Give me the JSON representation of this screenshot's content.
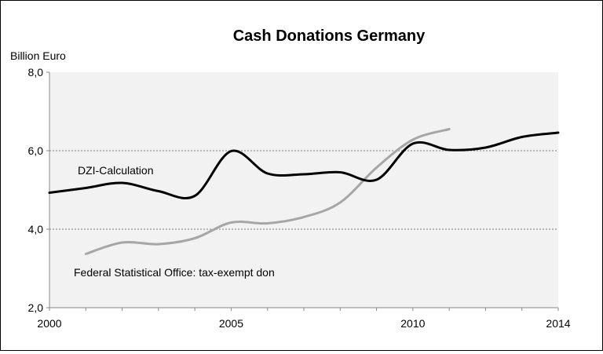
{
  "chart_data": {
    "type": "line",
    "title": "Cash Donations Germany",
    "ylabel": "Billion Euro",
    "xlabel": "",
    "xlim": [
      2000,
      2014
    ],
    "ylim": [
      2.0,
      8.0
    ],
    "grid": true,
    "y_ticks": [
      2.0,
      4.0,
      6.0,
      8.0
    ],
    "y_tick_labels": [
      "2,0",
      "4,0",
      "6,0",
      "8,0"
    ],
    "x_ticks": [
      2000,
      2005,
      2010,
      2014
    ],
    "x_tick_labels": [
      "2000",
      "2005",
      "2010",
      "2014"
    ],
    "series": [
      {
        "name": "DZI-Calculation",
        "annotation": "DZI-Calculation",
        "color": "#000000",
        "x": [
          2000,
          2001,
          2002,
          2003,
          2004,
          2005,
          2006,
          2007,
          2008,
          2009,
          2010,
          2011,
          2012,
          2013,
          2014
        ],
        "values": [
          4.93,
          5.05,
          5.18,
          4.97,
          4.85,
          5.99,
          5.42,
          5.4,
          5.45,
          5.26,
          6.18,
          6.02,
          6.08,
          6.35,
          6.46
        ]
      },
      {
        "name": "Federal Statistical Office: tax-exempt don",
        "annotation": "Federal Statistical Office: tax-exempt don",
        "color": "#a6a6a6",
        "x": [
          2001,
          2002,
          2003,
          2004,
          2005,
          2006,
          2007,
          2008,
          2009,
          2010,
          2011
        ],
        "values": [
          3.37,
          3.66,
          3.62,
          3.77,
          4.17,
          4.15,
          4.31,
          4.68,
          5.57,
          6.28,
          6.55
        ]
      }
    ]
  }
}
